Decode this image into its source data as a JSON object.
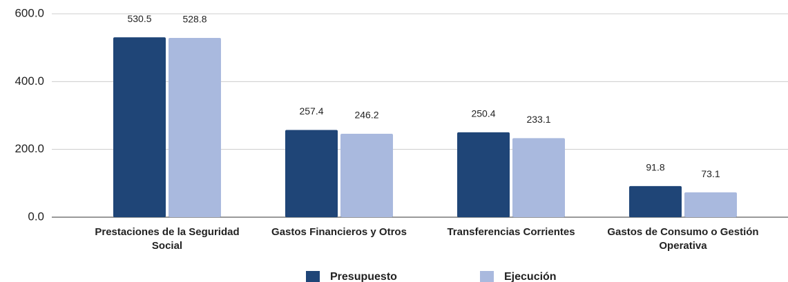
{
  "chart_data": {
    "type": "bar",
    "categories": [
      "Prestaciones de la Seguridad Social",
      "Gastos Financieros y Otros",
      "Transferencias Corrientes",
      "Gastos de Consumo o Gestión Operativa"
    ],
    "series": [
      {
        "name": "Presupuesto",
        "color": "#1f4577",
        "values": [
          530.5,
          257.4,
          250.4,
          91.8
        ]
      },
      {
        "name": "Ejecución",
        "color": "#a9b9de",
        "values": [
          528.8,
          246.2,
          233.1,
          73.1
        ]
      }
    ],
    "ylim": [
      0,
      600
    ],
    "yticks": [
      {
        "value": 0,
        "label": "0.0"
      },
      {
        "value": 200,
        "label": "200.0"
      },
      {
        "value": 400,
        "label": "400.0"
      },
      {
        "value": 600,
        "label": "600.0"
      }
    ],
    "grid": true,
    "legend": "bottom"
  }
}
